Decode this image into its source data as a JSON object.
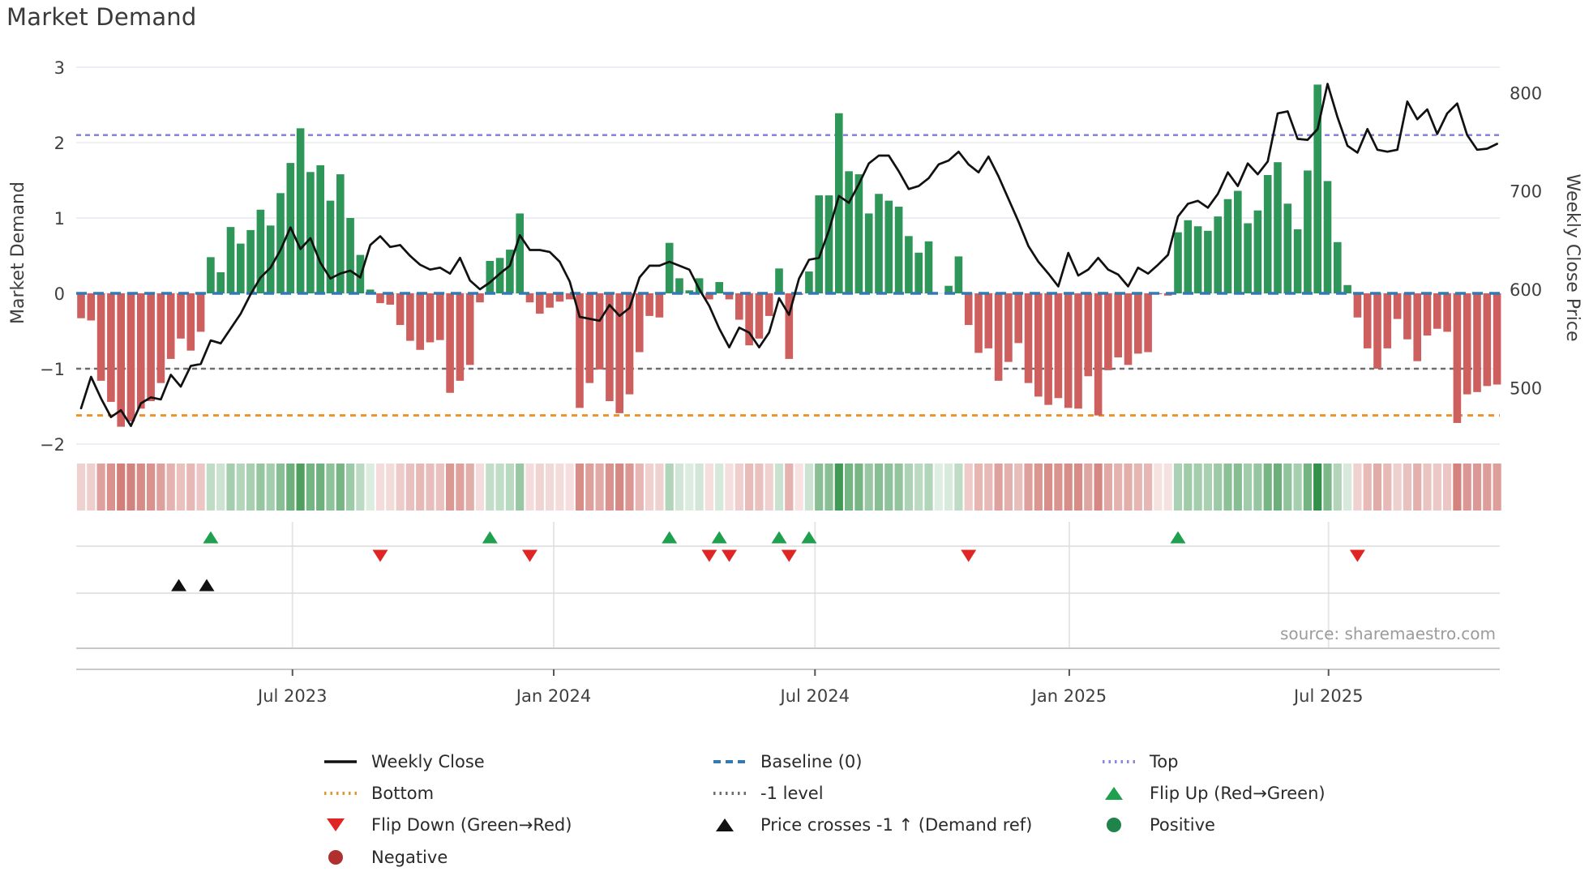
{
  "title": "Market Demand",
  "source_note": "source: sharemaestro.com",
  "axes": {
    "left_label": "Market Demand",
    "right_label": "Weekly Close Price",
    "left_ticks": [
      {
        "label": "3",
        "value": 3
      },
      {
        "label": "2",
        "value": 2
      },
      {
        "label": "1",
        "value": 1
      },
      {
        "label": "0",
        "value": 0
      },
      {
        "label": "−1",
        "value": -1
      },
      {
        "label": "−2",
        "value": -2
      }
    ],
    "right_ticks": [
      {
        "label": "800",
        "value": 800
      },
      {
        "label": "700",
        "value": 700
      },
      {
        "label": "600",
        "value": 600
      },
      {
        "label": "500",
        "value": 500
      }
    ],
    "x_ticks": [
      {
        "label": "Jul 2023",
        "week": 21.2
      },
      {
        "label": "Jan 2024",
        "week": 47.4
      },
      {
        "label": "Jul 2024",
        "week": 73.6
      },
      {
        "label": "Jan 2025",
        "week": 99.1
      },
      {
        "label": "Jul 2025",
        "week": 125.1
      }
    ]
  },
  "chart_data": {
    "type": "bar+line combo with heatmap strip and event markers",
    "x_unit": "week",
    "n_weeks": 143,
    "demand_ylim": [
      -2,
      3
    ],
    "price_axis_range": [
      500,
      800
    ],
    "grid": "horizontal only in main panel; vertical gridlines in marker panel",
    "legend_position": "bottom",
    "reference_lines": {
      "top": 2.1,
      "baseline": 0,
      "minus_one": -1,
      "bottom": -1.62
    },
    "series": [
      {
        "name": "Market Demand",
        "type": "bar",
        "values": [
          -0.33,
          -0.36,
          -1.16,
          -1.44,
          -1.77,
          -1.7,
          -1.53,
          -1.43,
          -1.19,
          -0.87,
          -0.6,
          -0.76,
          -0.51,
          0.48,
          0.28,
          0.88,
          0.66,
          0.84,
          1.11,
          0.9,
          1.33,
          1.73,
          2.19,
          1.61,
          1.7,
          1.23,
          1.58,
          1.0,
          0.51,
          0.05,
          -0.13,
          -0.15,
          -0.42,
          -0.63,
          -0.75,
          -0.65,
          -0.62,
          -1.32,
          -1.16,
          -0.95,
          -0.12,
          0.43,
          0.47,
          0.58,
          1.06,
          -0.12,
          -0.27,
          -0.19,
          -0.11,
          -0.08,
          -1.52,
          -1.19,
          -1.01,
          -1.43,
          -1.59,
          -1.34,
          -0.78,
          -0.3,
          -0.32,
          0.67,
          0.2,
          0.04,
          0.2,
          -0.08,
          0.15,
          -0.08,
          -0.35,
          -0.69,
          -0.6,
          -0.3,
          0.33,
          -0.87,
          -0.02,
          0.29,
          1.3,
          1.3,
          2.39,
          1.62,
          1.58,
          1.06,
          1.32,
          1.23,
          1.15,
          0.76,
          0.54,
          0.69,
          0.0,
          0.1,
          0.49,
          -0.42,
          -0.79,
          -0.73,
          -1.16,
          -0.91,
          -0.66,
          -1.19,
          -1.37,
          -1.48,
          -1.39,
          -1.52,
          -1.53,
          -1.1,
          -1.62,
          -1.02,
          -0.85,
          -0.95,
          -0.8,
          -0.78,
          -0.01,
          -0.03,
          0.81,
          0.97,
          0.89,
          0.83,
          1.02,
          1.25,
          1.36,
          0.93,
          1.1,
          1.57,
          1.74,
          1.19,
          0.85,
          1.63,
          2.77,
          1.49,
          0.68,
          0.11,
          -0.32,
          -0.73,
          -1.0,
          -0.73,
          -0.34,
          -0.61,
          -0.9,
          -0.56,
          -0.47,
          -0.51,
          -1.72,
          -1.34,
          -1.31,
          -1.23,
          -1.21
        ]
      },
      {
        "name": "Weekly Close",
        "type": "line",
        "values": [
          479,
          511,
          489,
          470,
          477,
          461,
          484,
          490,
          488,
          513,
          501,
          522,
          524,
          548,
          545,
          560,
          575,
          595,
          612,
          622,
          640,
          663,
          641,
          652,
          627,
          611,
          616,
          619,
          612,
          645,
          654,
          643,
          645,
          634,
          625,
          620,
          622,
          616,
          632,
          609,
          600,
          607,
          616,
          624,
          655,
          640,
          640,
          638,
          628,
          608,
          572,
          570,
          568,
          584,
          573,
          581,
          612,
          624,
          624,
          628,
          624,
          620,
          600,
          583,
          560,
          541,
          561,
          556,
          541,
          556,
          591,
          574,
          611,
          630,
          632,
          660,
          695,
          688,
          707,
          728,
          736,
          736,
          720,
          702,
          705,
          713,
          727,
          731,
          740,
          727,
          719,
          735,
          715,
          692,
          669,
          644,
          628,
          616,
          603,
          637,
          614,
          620,
          632,
          620,
          615,
          603,
          622,
          616,
          625,
          635,
          674,
          687,
          690,
          683,
          697,
          719,
          705,
          728,
          717,
          730,
          779,
          781,
          753,
          752,
          763,
          809,
          775,
          746,
          739,
          763,
          742,
          740,
          742,
          791,
          773,
          783,
          758,
          779,
          789,
          757,
          742,
          743,
          748
        ]
      }
    ],
    "markers": {
      "flip_up_weeks": [
        13,
        41,
        59,
        64,
        70,
        73,
        110
      ],
      "flip_down_weeks": [
        30,
        45,
        63,
        65,
        71,
        89,
        128
      ],
      "price_cross_weeks": [
        9.8,
        12.6
      ]
    },
    "heatmap": "one cell per week mirroring bar sign; green positive / red negative, intensity proportional to |value|"
  },
  "legend": {
    "items": [
      {
        "name": "legend-weekly-close",
        "label": "Weekly Close",
        "marker": "line",
        "color": "#111111",
        "col": 0,
        "row": 0
      },
      {
        "name": "legend-baseline",
        "label": "Baseline (0)",
        "marker": "dashes",
        "color": "#3579b1",
        "col": 1,
        "row": 0
      },
      {
        "name": "legend-top",
        "label": "Top",
        "marker": "dots",
        "color": "#8886dd",
        "col": 2,
        "row": 0
      },
      {
        "name": "legend-bottom",
        "label": "Bottom",
        "marker": "dots",
        "color": "#e8952e",
        "col": 0,
        "row": 1
      },
      {
        "name": "legend-minus-one",
        "label": "-1 level",
        "marker": "dots",
        "color": "#6d6d6d",
        "col": 1,
        "row": 1
      },
      {
        "name": "legend-flip-up",
        "label": "Flip Up (Red→Green)",
        "marker": "tri-up",
        "color": "#1fa04e",
        "col": 2,
        "row": 1
      },
      {
        "name": "legend-flip-down",
        "label": "Flip Down (Green→Red)",
        "marker": "tri-down",
        "color": "#e02525",
        "col": 0,
        "row": 2
      },
      {
        "name": "legend-price-cross",
        "label": "Price crosses -1 ↑ (Demand ref)",
        "marker": "tri-up",
        "color": "#111111",
        "col": 1,
        "row": 2
      },
      {
        "name": "legend-positive",
        "label": "Positive",
        "marker": "circle",
        "color": "#1e8449",
        "col": 2,
        "row": 2
      },
      {
        "name": "legend-negative",
        "label": "Negative",
        "marker": "circle",
        "color": "#b03030",
        "col": 0,
        "row": 3
      }
    ]
  },
  "colors": {
    "bar_positive": "#2e9658",
    "bar_negative": "#cd5f5e",
    "price_line": "#111111",
    "baseline_line": "#3579b1",
    "top_line": "#8886dd",
    "bottom_line": "#e8952e",
    "minus_one_line": "#6d6d6d",
    "flip_up_marker": "#1fa04e",
    "flip_down_marker": "#e02525",
    "price_cross_marker": "#111111",
    "gridline": "#e9e9f2",
    "tick_text": "#3f3f3f"
  }
}
